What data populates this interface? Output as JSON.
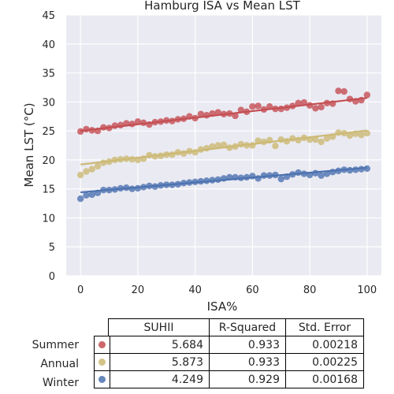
{
  "chart_data": {
    "type": "scatter",
    "title": "Hamburg ISA vs Mean LST",
    "xlabel": "ISA%",
    "ylabel": "Mean LST (°C)",
    "xlim": [
      -5,
      105
    ],
    "ylim": [
      0,
      45
    ],
    "xticks": [
      0,
      20,
      40,
      60,
      80,
      100
    ],
    "yticks": [
      0,
      5,
      10,
      15,
      20,
      25,
      30,
      35,
      40,
      45
    ],
    "grid": true,
    "series": [
      {
        "name": "Summer",
        "color": "#c44e52",
        "fit": [
          25.0,
          0.05684
        ],
        "x": [
          0,
          2,
          4,
          6,
          8,
          10,
          12,
          14,
          16,
          18,
          20,
          22,
          24,
          26,
          28,
          30,
          32,
          34,
          36,
          38,
          40,
          42,
          44,
          46,
          48,
          50,
          52,
          54,
          56,
          58,
          60,
          62,
          64,
          66,
          68,
          70,
          72,
          74,
          76,
          78,
          80,
          82,
          84,
          86,
          88,
          90,
          92,
          94,
          96,
          98,
          100
        ],
        "y": [
          24.9,
          25.3,
          25.1,
          25.0,
          25.6,
          25.5,
          25.9,
          26.0,
          26.3,
          26.2,
          26.6,
          26.4,
          26.1,
          26.5,
          26.6,
          26.8,
          26.7,
          27.0,
          27.1,
          27.5,
          27.2,
          27.9,
          27.7,
          28.0,
          28.2,
          27.9,
          28.0,
          27.6,
          28.6,
          28.3,
          29.2,
          29.3,
          28.7,
          29.2,
          28.8,
          28.8,
          29.0,
          29.3,
          29.8,
          29.9,
          29.4,
          28.9,
          29.1,
          29.8,
          29.7,
          31.9,
          31.8,
          30.5,
          30.1,
          30.3,
          31.2
        ]
      },
      {
        "name": "Annual",
        "color": "#ccb974",
        "fit": [
          19.2,
          0.05873
        ],
        "x": [
          0,
          2,
          4,
          6,
          8,
          10,
          12,
          14,
          16,
          18,
          20,
          22,
          24,
          26,
          28,
          30,
          32,
          34,
          36,
          38,
          40,
          42,
          44,
          46,
          48,
          50,
          52,
          54,
          56,
          58,
          60,
          62,
          64,
          66,
          68,
          70,
          72,
          74,
          76,
          78,
          80,
          82,
          84,
          86,
          88,
          90,
          92,
          94,
          96,
          98,
          100
        ],
        "y": [
          17.4,
          18.0,
          18.4,
          18.9,
          19.5,
          19.7,
          20.0,
          20.1,
          20.2,
          20.1,
          20.0,
          20.2,
          20.8,
          20.6,
          20.7,
          20.9,
          20.9,
          21.3,
          21.1,
          21.5,
          21.3,
          21.8,
          22.0,
          22.3,
          22.5,
          22.6,
          22.1,
          22.3,
          22.7,
          22.5,
          22.5,
          23.3,
          23.1,
          23.4,
          22.4,
          23.5,
          23.2,
          23.7,
          23.4,
          23.8,
          23.5,
          23.5,
          23.1,
          23.7,
          24.0,
          24.7,
          24.6,
          24.2,
          24.5,
          24.3,
          24.6
        ]
      },
      {
        "name": "Winter",
        "color": "#4c72b0",
        "fit": [
          14.4,
          0.04249
        ],
        "x": [
          0,
          2,
          4,
          6,
          8,
          10,
          12,
          14,
          16,
          18,
          20,
          22,
          24,
          26,
          28,
          30,
          32,
          34,
          36,
          38,
          40,
          42,
          44,
          46,
          48,
          50,
          52,
          54,
          56,
          58,
          60,
          62,
          64,
          66,
          68,
          70,
          72,
          74,
          76,
          78,
          80,
          82,
          84,
          86,
          88,
          90,
          92,
          94,
          96,
          98,
          100
        ],
        "y": [
          13.3,
          13.9,
          14.0,
          14.3,
          14.8,
          14.8,
          14.9,
          15.1,
          15.2,
          15.0,
          15.1,
          15.3,
          15.5,
          15.4,
          15.6,
          15.7,
          15.7,
          15.8,
          16.0,
          16.1,
          16.2,
          16.3,
          16.4,
          16.5,
          16.6,
          16.8,
          17.0,
          17.0,
          16.9,
          17.0,
          17.2,
          16.8,
          17.3,
          17.3,
          17.4,
          16.7,
          17.1,
          17.5,
          17.8,
          17.6,
          17.4,
          17.7,
          17.3,
          17.6,
          17.9,
          18.1,
          18.3,
          18.2,
          18.3,
          18.4,
          18.5
        ]
      }
    ],
    "table": {
      "columns": [
        "SUHII",
        "R-Squared",
        "Std. Error"
      ],
      "rows": [
        {
          "label": "Summer",
          "values": [
            "5.684",
            "0.933",
            "0.00218"
          ]
        },
        {
          "label": "Annual",
          "values": [
            "5.873",
            "0.933",
            "0.00225"
          ]
        },
        {
          "label": "Winter",
          "values": [
            "4.249",
            "0.929",
            "0.00168"
          ]
        }
      ]
    }
  }
}
